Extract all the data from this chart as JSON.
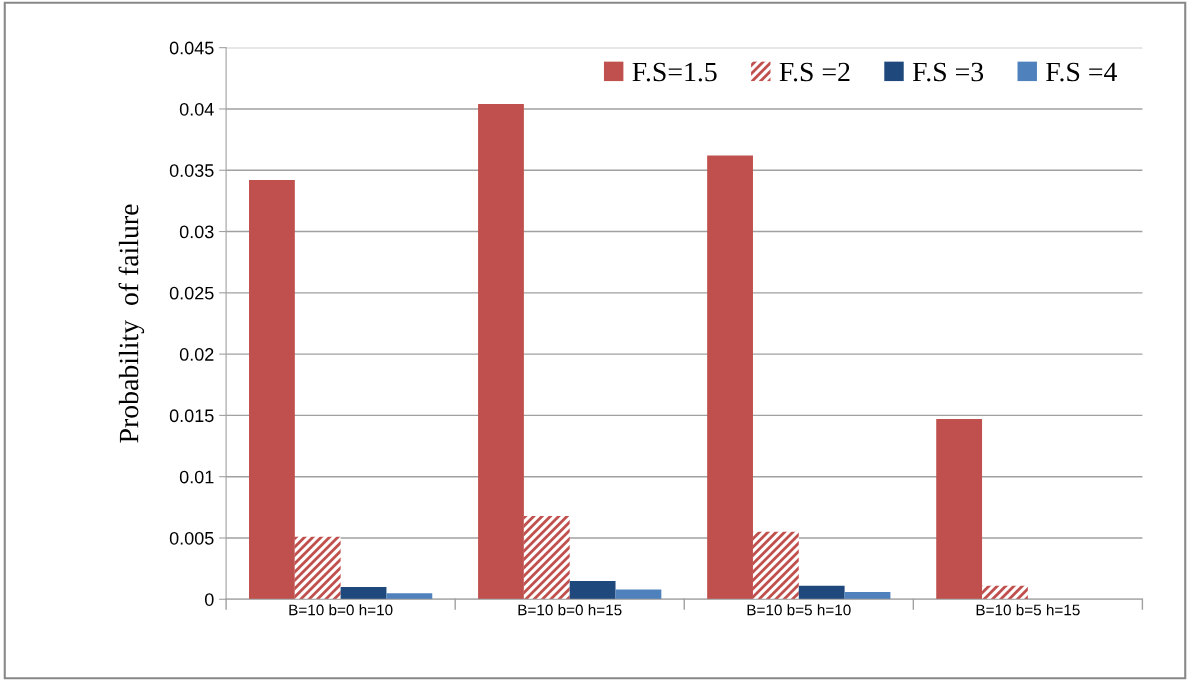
{
  "chart_data": {
    "type": "bar",
    "ylabel": "Probability  of failure",
    "categories": [
      "B=10 b=0 h=10",
      "B=10 b=0 h=15",
      "B=10 b=5 h=10",
      "B=10 b=5 h=15"
    ],
    "series": [
      {
        "name": "F.S=1.5",
        "color": "#c0504d",
        "values": [
          0.0342,
          0.0404,
          0.0362,
          0.0147
        ]
      },
      {
        "name": "F.S =2",
        "color": "#c0504d",
        "values": [
          0.0051,
          0.0068,
          0.0055,
          0.0011
        ]
      },
      {
        "name": "F.S =3",
        "color": "#1f497d",
        "values": [
          0.001,
          0.0015,
          0.0011,
          0
        ]
      },
      {
        "name": "F.S =4",
        "color": "#4f81bd",
        "values": [
          0.0005,
          0.0008,
          0.0006,
          0
        ]
      }
    ],
    "ylim": [
      0,
      0.045
    ],
    "yticks": [
      0,
      0.005,
      0.01,
      0.015,
      0.02,
      0.025,
      0.03,
      0.035,
      0.04,
      0.045
    ],
    "grid": "y",
    "legend": "top right"
  }
}
